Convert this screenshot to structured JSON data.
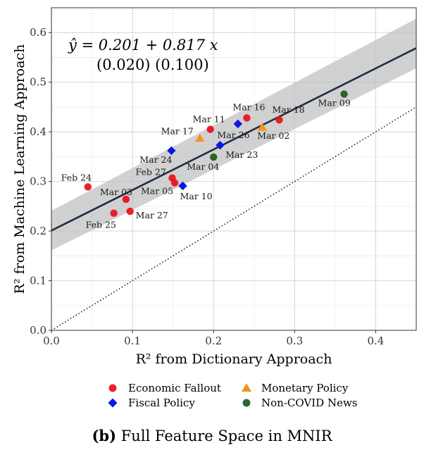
{
  "chart_data": {
    "type": "scatter",
    "xlabel": "R² from Dictionary Approach",
    "ylabel": "R² from Machine Learning Approach",
    "xlim": [
      0,
      0.45
    ],
    "ylim": [
      0,
      0.65
    ],
    "xticks": [
      0.0,
      0.1,
      0.2,
      0.3,
      0.4
    ],
    "yticks": [
      0.0,
      0.1,
      0.2,
      0.3,
      0.4,
      0.5,
      0.6
    ],
    "xtick_labels": [
      "0.0",
      "0.1",
      "0.2",
      "0.3",
      "0.4"
    ],
    "ytick_labels": [
      "0.0",
      "0.1",
      "0.2",
      "0.3",
      "0.4",
      "0.5",
      "0.6"
    ],
    "grid": true,
    "regression": {
      "intercept": 0.201,
      "slope": 0.817,
      "equation_label": "ŷ = 0.201 + 0.817 x",
      "se_label": "(0.020)  (0.100)",
      "band_left": [
        0.161,
        0.241
      ],
      "band_right": [
        0.528,
        0.628
      ]
    },
    "reference_line": {
      "style": "dotted",
      "slope": 1,
      "intercept": 0
    },
    "series": [
      {
        "name": "Economic Fallout",
        "color": "#e8101c",
        "marker": "circle",
        "points": [
          {
            "label": "Feb 24",
            "x": 0.045,
            "y": 0.289
          },
          {
            "label": "Feb 25",
            "x": 0.077,
            "y": 0.236
          },
          {
            "label": "Mar 27",
            "x": 0.097,
            "y": 0.24
          },
          {
            "label": "Mar 03",
            "x": 0.092,
            "y": 0.264
          },
          {
            "label": "Feb 27",
            "x": 0.149,
            "y": 0.307
          },
          {
            "label": "Mar 05",
            "x": 0.152,
            "y": 0.297
          },
          {
            "label": "Mar 11",
            "x": 0.196,
            "y": 0.405
          },
          {
            "label": "Mar 16",
            "x": 0.241,
            "y": 0.428
          },
          {
            "label": "Mar 18",
            "x": 0.281,
            "y": 0.424
          }
        ]
      },
      {
        "name": "Fiscal Policy",
        "color": "#0a17e6",
        "marker": "diamond",
        "points": [
          {
            "label": "Mar 24",
            "x": 0.148,
            "y": 0.362
          },
          {
            "label": "Mar 10",
            "x": 0.162,
            "y": 0.291
          },
          {
            "label": "Mar 26",
            "x": 0.208,
            "y": 0.373
          },
          {
            "label": "",
            "x": 0.23,
            "y": 0.416
          }
        ]
      },
      {
        "name": "Monetary Policy",
        "color": "#f5931f",
        "marker": "triangle",
        "points": [
          {
            "label": "Mar 17",
            "x": 0.183,
            "y": 0.387
          },
          {
            "label": "Mar 02",
            "x": 0.26,
            "y": 0.409
          }
        ]
      },
      {
        "name": "Non-COVID News",
        "color": "#1f5a1f",
        "marker": "circle",
        "points": [
          {
            "label": "Mar 04",
            "x": 0.2,
            "y": 0.349
          },
          {
            "label": "Mar 09",
            "x": 0.361,
            "y": 0.476
          }
        ]
      }
    ],
    "annotations": {
      "Feb 24": [
        {
          "text": "Feb 24",
          "dx": -38,
          "dy": -9
        }
      ],
      "Feb 25": [
        {
          "text": "Feb 25",
          "dx": -40,
          "dy": 21
        }
      ],
      "Mar 27": [
        {
          "text": "Mar 27",
          "dx": 8,
          "dy": 10
        }
      ],
      "Mar 03": [
        {
          "text": "Mar 03",
          "dx": -37,
          "dy": -6
        }
      ],
      "Feb 27": [
        {
          "text": "Feb 27",
          "dx": -52,
          "dy": -4
        }
      ],
      "Mar 05": [
        {
          "text": "Mar 05",
          "dx": -48,
          "dy": 16
        }
      ],
      "Mar 11": [
        {
          "text": "Mar 11",
          "dx": -25,
          "dy": -10
        }
      ],
      "Mar 16": [
        {
          "text": "Mar 16",
          "dx": -20,
          "dy": -11
        }
      ],
      "Mar 18": [
        {
          "text": "Mar 18",
          "dx": -10,
          "dy": -10
        }
      ],
      "Mar 24": [
        {
          "text": "Mar 24",
          "dx": -45,
          "dy": 17
        }
      ],
      "Mar 10": [
        {
          "text": "Mar 10",
          "dx": -4,
          "dy": 19
        }
      ],
      "Mar 26": [
        {
          "text": "Mar 26",
          "dx": -4,
          "dy": -10
        }
      ],
      "Mar 17": [
        {
          "text": "Mar 17",
          "dx": -55,
          "dy": -6
        }
      ],
      "Mar 02": [
        {
          "text": "Mar 02",
          "dx": -7,
          "dy": 16
        }
      ],
      "Mar 04": [
        {
          "text": "Mar 04",
          "dx": -38,
          "dy": 18
        },
        {
          "text": "Mar 23",
          "dx": 17,
          "dy": 1
        }
      ],
      "Mar 09": [
        {
          "text": "Mar 09",
          "dx": -37,
          "dy": 17
        }
      ]
    }
  },
  "legend": {
    "items": [
      {
        "label": "Economic Fallout",
        "color": "#e8101c",
        "marker": "circle"
      },
      {
        "label": "Monetary Policy",
        "color": "#f5931f",
        "marker": "triangle"
      },
      {
        "label": "Fiscal Policy",
        "color": "#0a17e6",
        "marker": "diamond"
      },
      {
        "label": "Non-COVID News",
        "color": "#1f5a1f",
        "marker": "circle"
      }
    ]
  },
  "caption": {
    "tag": "(b)",
    "text": "Full Feature Space in MNIR"
  }
}
